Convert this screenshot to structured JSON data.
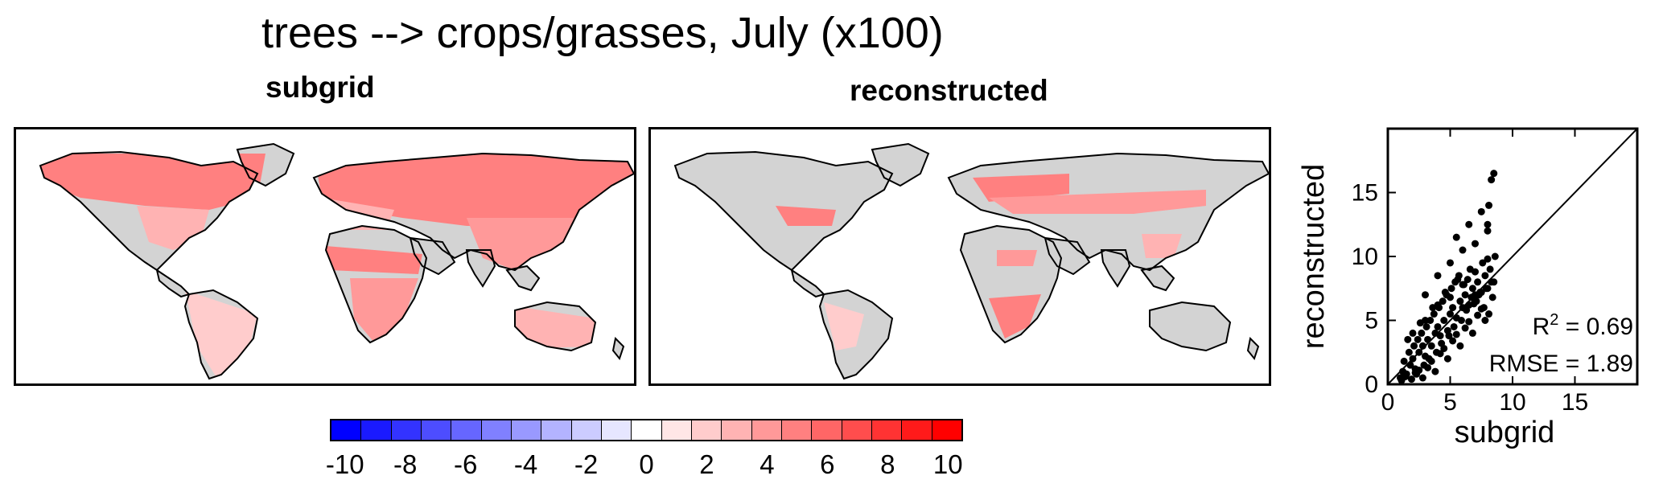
{
  "title": "trees --> crops/grasses, July (x100)",
  "panels": [
    {
      "title": "subgrid"
    },
    {
      "title": "reconstructed"
    }
  ],
  "colors": {
    "land": "#d3d3d3",
    "coast": "#000000",
    "scatter_points": "#000000"
  },
  "colorbar": {
    "colors": [
      "#0000ff",
      "#1a1aff",
      "#3333ff",
      "#4d4dff",
      "#6666ff",
      "#8080ff",
      "#9999ff",
      "#b3b3ff",
      "#ccccff",
      "#e6e6ff",
      "#ffffff",
      "#ffe6e6",
      "#ffcccc",
      "#ffb3b3",
      "#ff9999",
      "#ff8080",
      "#ff6666",
      "#ff4d4d",
      "#ff3333",
      "#ff1a1a",
      "#ff0000"
    ],
    "ticks": [
      "-10",
      "-8",
      "-6",
      "-4",
      "-2",
      "0",
      "2",
      "4",
      "6",
      "8",
      "10"
    ]
  },
  "chart_data": [
    {
      "type": "heatmap",
      "title": "subgrid",
      "scale": {
        "min": -10,
        "max": 10
      },
      "regions": [
        {
          "value": 5,
          "area": "boreal Eurasia"
        },
        {
          "value": 5,
          "area": "boreal North America"
        },
        {
          "value": 3,
          "area": "eastern United States"
        },
        {
          "value": 3,
          "area": "Europe"
        },
        {
          "value": 4,
          "area": "East Asia"
        },
        {
          "value": 2,
          "area": "South America"
        },
        {
          "value": 4,
          "area": "southern Africa"
        },
        {
          "value": 3,
          "area": "Australia"
        },
        {
          "value": 5,
          "area": "Sahel"
        }
      ]
    },
    {
      "type": "heatmap",
      "title": "reconstructed",
      "scale": {
        "min": -10,
        "max": 10
      },
      "regions": [
        {
          "value": 5,
          "area": "eastern Europe"
        },
        {
          "value": 4,
          "area": "central Asia"
        },
        {
          "value": 5,
          "area": "eastern United States"
        },
        {
          "value": 5,
          "area": "southern Africa"
        },
        {
          "value": 2,
          "area": "South America"
        },
        {
          "value": 3,
          "area": "eastern China"
        },
        {
          "value": 4,
          "area": "Sahel"
        }
      ]
    },
    {
      "type": "scatter",
      "xlabel": "subgrid",
      "ylabel": "reconstructed",
      "xlim": [
        0,
        20
      ],
      "ylim": [
        0,
        20
      ],
      "xticks": [
        "0",
        "5",
        "10",
        "15"
      ],
      "yticks": [
        "0",
        "5",
        "10",
        "15"
      ],
      "one_to_one_line": true,
      "annotations": {
        "r2_label": "R",
        "r2_sup": "2",
        "r2_value": "= 0.69",
        "rmse": "RMSE = 1.89"
      },
      "points": {
        "x": [
          1.0,
          1.2,
          1.5,
          1.8,
          2.0,
          2.2,
          2.5,
          2.8,
          3.0,
          3.2,
          3.5,
          3.8,
          4.0,
          4.2,
          4.5,
          4.8,
          5.0,
          5.2,
          5.5,
          5.8,
          6.0,
          6.2,
          6.5,
          6.8,
          7.0,
          7.2,
          7.5,
          7.8,
          8.0,
          8.2,
          8.5,
          1.3,
          1.7,
          2.1,
          2.4,
          2.7,
          3.1,
          3.4,
          3.7,
          4.1,
          4.4,
          4.7,
          5.1,
          5.4,
          5.7,
          6.1,
          6.4,
          6.7,
          7.1,
          7.4,
          7.7,
          8.1,
          8.4,
          2.3,
          2.9,
          3.3,
          3.9,
          4.3,
          4.9,
          5.3,
          5.9,
          6.3,
          6.9,
          7.3,
          7.9,
          8.3,
          1.6,
          2.6,
          3.6,
          4.6,
          5.6,
          6.6,
          7.6,
          8.6,
          3.0,
          4.0,
          5.0,
          6.0,
          7.0,
          8.0,
          5.5,
          6.5,
          7.5,
          8.5,
          8.3,
          8.1,
          8.0,
          1.1,
          1.4,
          1.9,
          2.2,
          2.5,
          3.2,
          3.5,
          4.2,
          4.5,
          5.2,
          5.5,
          6.2,
          6.5,
          7.2,
          7.5,
          2.0,
          3.0,
          4.0,
          5.0,
          6.0,
          7.0,
          8.0,
          2.8,
          3.8,
          4.8,
          5.8,
          6.8,
          7.8
        ],
        "y": [
          0.5,
          1.0,
          0.8,
          1.5,
          2.0,
          1.2,
          2.5,
          3.0,
          2.2,
          3.5,
          3.0,
          4.0,
          4.5,
          3.8,
          5.0,
          4.2,
          5.5,
          6.0,
          5.2,
          6.5,
          6.0,
          7.0,
          6.2,
          7.5,
          7.0,
          8.0,
          7.2,
          8.5,
          7.5,
          9.0,
          8.0,
          1.8,
          2.5,
          3.0,
          3.5,
          4.0,
          4.5,
          5.0,
          5.5,
          6.0,
          6.5,
          7.0,
          7.5,
          8.0,
          8.5,
          7.8,
          8.2,
          6.8,
          6.5,
          7.2,
          6.0,
          5.5,
          6.8,
          0.8,
          1.5,
          2.0,
          2.5,
          3.2,
          3.8,
          4.5,
          5.0,
          5.8,
          6.3,
          7.0,
          7.5,
          8.0,
          3.5,
          4.8,
          6.0,
          7.2,
          8.2,
          9.0,
          9.5,
          10.0,
          7.0,
          8.5,
          9.5,
          10.5,
          11.0,
          12.0,
          11.5,
          12.5,
          13.5,
          16.5,
          16.0,
          14.0,
          12.5,
          0.3,
          0.6,
          0.4,
          0.9,
          1.1,
          1.3,
          1.8,
          2.4,
          2.8,
          3.4,
          3.9,
          4.4,
          4.9,
          5.4,
          5.9,
          4.0,
          5.0,
          6.2,
          6.8,
          7.8,
          8.8,
          9.8,
          0.5,
          1.0,
          2.0,
          3.0,
          4.0,
          5.0
        ]
      }
    }
  ]
}
